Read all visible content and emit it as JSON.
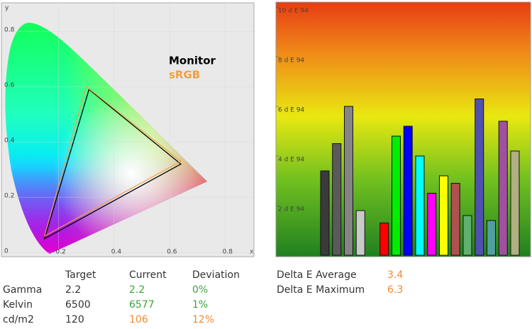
{
  "chart_data": [
    {
      "type": "line",
      "x_label": "x",
      "y_label": "y",
      "xlim": [
        -0.005,
        0.903
      ],
      "ylim": [
        -0.015,
        0.903
      ],
      "xticks": [
        0.2,
        0.4,
        0.6,
        0.8
      ],
      "yticks": [
        0,
        0.2,
        0.4,
        0.6,
        0.8
      ],
      "grid": true,
      "legend": "top-right",
      "series": [
        {
          "name": "Monitor",
          "color": "#000000",
          "x": [
            0.31,
            0.64,
            0.15
          ],
          "values": [
            0.59,
            0.32,
            0.05
          ]
        },
        {
          "name": "sRGB",
          "color": "#f0a040",
          "x": [
            0.3,
            0.64,
            0.15
          ],
          "values": [
            0.6,
            0.33,
            0.06
          ]
        }
      ]
    },
    {
      "type": "bar",
      "ylim": [
        0,
        10.2
      ],
      "yticks": [
        {
          "value": 2,
          "label": "2 d E 94"
        },
        {
          "value": 4,
          "label": "4 d E 94"
        },
        {
          "value": 6,
          "label": "6 d E 94"
        },
        {
          "value": 8,
          "label": "8 d E 94"
        },
        {
          "value": 10,
          "label": "10 d E 94"
        }
      ],
      "grid": false,
      "values": [
        3.4,
        4.5,
        6.0,
        1.8,
        null,
        1.3,
        4.8,
        5.2,
        4.0,
        2.5,
        3.2,
        2.9,
        1.6,
        6.3,
        1.4,
        5.4,
        4.2
      ],
      "colors": [
        "#3a3a3a",
        "#5a5a5a",
        "#858585",
        "#cacaca",
        null,
        "#ff0000",
        "#00ee00",
        "#0000ff",
        "#00ffff",
        "#ff00ff",
        "#ffff00",
        "#b05050",
        "#60b070",
        "#5050b0",
        "#50a0a0",
        "#a050a0",
        "#b0b080"
      ]
    }
  ],
  "table": {
    "header": [
      "Target",
      "Current",
      "Deviation"
    ],
    "rows": [
      [
        "Gamma",
        "2.2",
        "2.2",
        "0%"
      ],
      [
        "Kelvin",
        "6500",
        "6577",
        "1%"
      ],
      [
        "cd/m2",
        "120",
        "106",
        "12%"
      ]
    ]
  },
  "summary": {
    "rows": [
      [
        "Delta E Average",
        "3.4"
      ],
      [
        "Delta E Maximum",
        "6.3"
      ]
    ]
  }
}
